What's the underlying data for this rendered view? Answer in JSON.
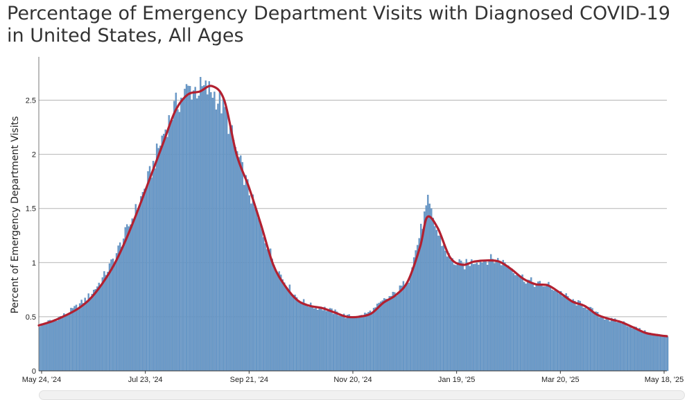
{
  "chart_data": {
    "type": "bar",
    "title": "Percentage of Emergency Department Visits with Diagnosed COVID-19 in United States, All Ages",
    "xlabel": "",
    "ylabel": "Percent of Emergency Department Visits",
    "ylim": [
      0,
      2.9
    ],
    "yticks": [
      "0",
      "0.5",
      "1",
      "1.5",
      "2",
      "2.5"
    ],
    "x_tick_labels": [
      "May 24, '24",
      "Jul 23, '24",
      "Sep 21, '24",
      "Nov 20, '24",
      "Jan 19, '25",
      "Mar 20, '25",
      "May 18, '25"
    ],
    "grid": "horizontal",
    "legend": "none",
    "x_start": "2024-05-24",
    "x_end": "2025-05-18",
    "colors": {
      "bars": "#6a9ac9",
      "bar_edge": "#4f7fb0",
      "trend": "#b22030",
      "grid": "#b5b5b5"
    },
    "series": [
      {
        "type": "bar",
        "points": [
          [
            "2024-05-24",
            0.42
          ],
          [
            "2024-06-01",
            0.47
          ],
          [
            "2024-06-08",
            0.52
          ],
          [
            "2024-06-15",
            0.6
          ],
          [
            "2024-06-22",
            0.7
          ],
          [
            "2024-06-29",
            0.85
          ],
          [
            "2024-07-06",
            1.05
          ],
          [
            "2024-07-13",
            1.3
          ],
          [
            "2024-07-20",
            1.55
          ],
          [
            "2024-07-27",
            1.85
          ],
          [
            "2024-08-03",
            2.2
          ],
          [
            "2024-08-10",
            2.45
          ],
          [
            "2024-08-17",
            2.6
          ],
          [
            "2024-08-24",
            2.6
          ],
          [
            "2024-08-31",
            2.58
          ],
          [
            "2024-09-07",
            2.4
          ],
          [
            "2024-09-14",
            2.0
          ],
          [
            "2024-09-21",
            1.65
          ],
          [
            "2024-09-28",
            1.3
          ],
          [
            "2024-10-05",
            1.0
          ],
          [
            "2024-10-12",
            0.8
          ],
          [
            "2024-10-19",
            0.66
          ],
          [
            "2024-10-26",
            0.6
          ],
          [
            "2024-11-02",
            0.58
          ],
          [
            "2024-11-09",
            0.54
          ],
          [
            "2024-11-16",
            0.5
          ],
          [
            "2024-11-23",
            0.5
          ],
          [
            "2024-11-30",
            0.55
          ],
          [
            "2024-12-07",
            0.65
          ],
          [
            "2024-12-14",
            0.72
          ],
          [
            "2024-12-21",
            0.85
          ],
          [
            "2024-12-28",
            1.3
          ],
          [
            "2025-01-01",
            1.55
          ],
          [
            "2025-01-07",
            1.25
          ],
          [
            "2025-01-14",
            1.02
          ],
          [
            "2025-01-21",
            0.97
          ],
          [
            "2025-01-28",
            1.02
          ],
          [
            "2025-02-04",
            1.03
          ],
          [
            "2025-02-11",
            1.02
          ],
          [
            "2025-02-18",
            0.95
          ],
          [
            "2025-02-25",
            0.85
          ],
          [
            "2025-03-04",
            0.8
          ],
          [
            "2025-03-11",
            0.79
          ],
          [
            "2025-03-18",
            0.72
          ],
          [
            "2025-03-25",
            0.64
          ],
          [
            "2025-04-01",
            0.6
          ],
          [
            "2025-04-08",
            0.52
          ],
          [
            "2025-04-15",
            0.47
          ],
          [
            "2025-04-22",
            0.45
          ],
          [
            "2025-04-29",
            0.4
          ],
          [
            "2025-05-06",
            0.35
          ],
          [
            "2025-05-13",
            0.33
          ],
          [
            "2025-05-18",
            0.32
          ]
        ]
      },
      {
        "type": "line",
        "points": [
          [
            "2024-05-24",
            0.42
          ],
          [
            "2024-06-01",
            0.46
          ],
          [
            "2024-06-08",
            0.51
          ],
          [
            "2024-06-15",
            0.57
          ],
          [
            "2024-06-22",
            0.66
          ],
          [
            "2024-06-29",
            0.8
          ],
          [
            "2024-07-06",
            0.98
          ],
          [
            "2024-07-13",
            1.22
          ],
          [
            "2024-07-20",
            1.5
          ],
          [
            "2024-07-27",
            1.8
          ],
          [
            "2024-08-03",
            2.1
          ],
          [
            "2024-08-10",
            2.4
          ],
          [
            "2024-08-17",
            2.55
          ],
          [
            "2024-08-24",
            2.58
          ],
          [
            "2024-08-31",
            2.63
          ],
          [
            "2024-09-07",
            2.5
          ],
          [
            "2024-09-14",
            2.0
          ],
          [
            "2024-09-21",
            1.7
          ],
          [
            "2024-09-28",
            1.35
          ],
          [
            "2024-10-05",
            0.98
          ],
          [
            "2024-10-12",
            0.78
          ],
          [
            "2024-10-19",
            0.65
          ],
          [
            "2024-10-26",
            0.6
          ],
          [
            "2024-11-02",
            0.58
          ],
          [
            "2024-11-09",
            0.54
          ],
          [
            "2024-11-16",
            0.5
          ],
          [
            "2024-11-23",
            0.5
          ],
          [
            "2024-11-30",
            0.53
          ],
          [
            "2024-12-07",
            0.63
          ],
          [
            "2024-12-14",
            0.7
          ],
          [
            "2024-12-21",
            0.83
          ],
          [
            "2024-12-28",
            1.15
          ],
          [
            "2025-01-01",
            1.42
          ],
          [
            "2025-01-07",
            1.32
          ],
          [
            "2025-01-14",
            1.05
          ],
          [
            "2025-01-21",
            0.98
          ],
          [
            "2025-01-28",
            1.01
          ],
          [
            "2025-02-04",
            1.02
          ],
          [
            "2025-02-11",
            1.01
          ],
          [
            "2025-02-18",
            0.94
          ],
          [
            "2025-02-25",
            0.85
          ],
          [
            "2025-03-04",
            0.8
          ],
          [
            "2025-03-11",
            0.79
          ],
          [
            "2025-03-18",
            0.72
          ],
          [
            "2025-03-25",
            0.64
          ],
          [
            "2025-04-01",
            0.6
          ],
          [
            "2025-04-08",
            0.52
          ],
          [
            "2025-04-15",
            0.48
          ],
          [
            "2025-04-22",
            0.45
          ],
          [
            "2025-04-29",
            0.4
          ],
          [
            "2025-05-06",
            0.35
          ],
          [
            "2025-05-13",
            0.33
          ],
          [
            "2025-05-18",
            0.32
          ]
        ]
      }
    ]
  }
}
